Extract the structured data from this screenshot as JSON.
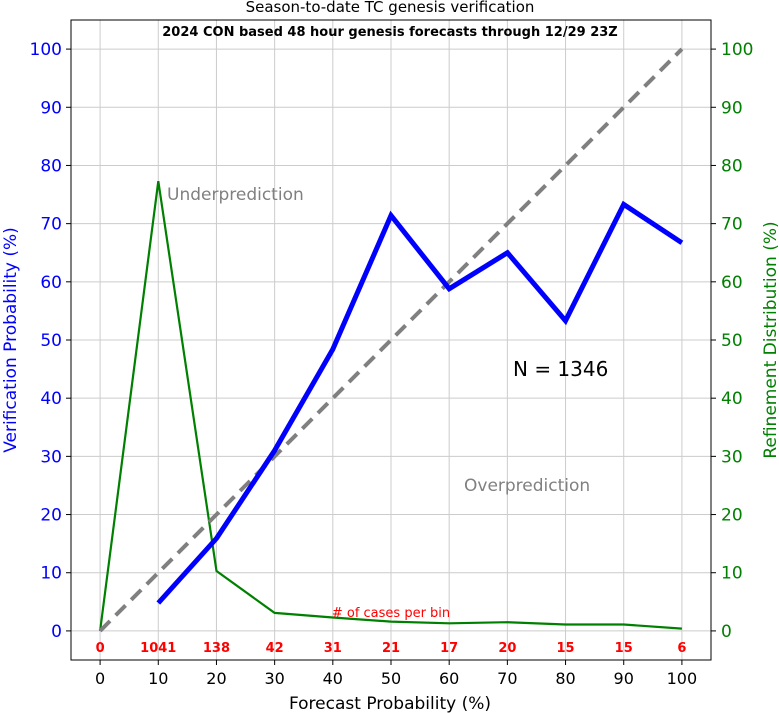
{
  "chart_data": {
    "type": "line",
    "title": "Season-to-date TC genesis verification",
    "subtitle": "2024 CON based 48 hour genesis forecasts through 12/29 23Z",
    "xlabel": "Forecast Probability (%)",
    "ylabel_left": "Verification Probability (%)",
    "ylabel_right": "Refinement Distribution (%)",
    "xlim": [
      -5,
      105
    ],
    "ylim": [
      -5,
      105
    ],
    "xticks": [
      0,
      10,
      20,
      30,
      40,
      50,
      60,
      70,
      80,
      90,
      100
    ],
    "yticks": [
      0,
      10,
      20,
      30,
      40,
      50,
      60,
      70,
      80,
      90,
      100
    ],
    "grid": true,
    "series": [
      {
        "color": "#0000ff",
        "x": [
          10,
          20,
          30,
          40,
          50,
          60,
          70,
          80,
          90,
          100
        ],
        "values": [
          4.8,
          15.9,
          31.0,
          48.4,
          71.4,
          58.8,
          65.0,
          53.3,
          73.3,
          66.7
        ]
      },
      {
        "color": "#008000",
        "x": [
          0,
          10,
          20,
          30,
          40,
          50,
          60,
          70,
          80,
          90,
          100
        ],
        "values": [
          0,
          77.3,
          10.3,
          3.1,
          2.3,
          1.6,
          1.3,
          1.5,
          1.1,
          1.1,
          0.4
        ]
      },
      {
        "color": "#808080",
        "style": "dashed",
        "x": [
          0,
          100
        ],
        "values": [
          0,
          100
        ]
      }
    ],
    "annotations": {
      "underprediction": "Underprediction",
      "overprediction": "Overprediction",
      "n_label": "N = 1346",
      "cases_label": "# of cases per bin"
    },
    "case_counts": [
      "0",
      "1041",
      "138",
      "42",
      "31",
      "21",
      "17",
      "20",
      "15",
      "15",
      "6"
    ]
  },
  "colors": {
    "left_axis": "#0000ff",
    "right_axis": "#008000",
    "counts": "#ff0000",
    "annotation": "#808080",
    "grid": "#cccccc"
  }
}
